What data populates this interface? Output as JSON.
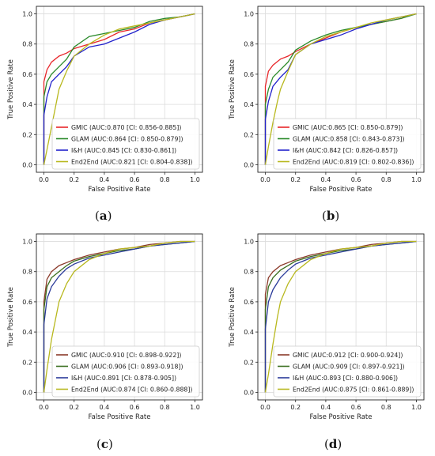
{
  "chart_data": [
    {
      "type": "line",
      "panel_label": "a",
      "xlabel": "False Positive Rate",
      "ylabel": "True Positive Rate",
      "xlim": [
        -0.05,
        1.05
      ],
      "ylim": [
        -0.05,
        1.05
      ],
      "xticks": [
        "0.0",
        "0.2",
        "0.4",
        "0.6",
        "0.8",
        "1.0"
      ],
      "yticks": [
        "0.0",
        "0.2",
        "0.4",
        "0.6",
        "0.8",
        "1.0"
      ],
      "grid": true,
      "legend_position": "lower-right",
      "series": [
        {
          "name": "GMIC (AUC:0.870 [CI: 0.856-0.885])",
          "color": "#e8262a",
          "x": [
            0,
            0,
            0.02,
            0.05,
            0.1,
            0.15,
            0.2,
            0.3,
            0.4,
            0.5,
            0.6,
            0.7,
            0.8,
            0.9,
            0.95,
            1
          ],
          "y": [
            0,
            0.55,
            0.63,
            0.68,
            0.72,
            0.74,
            0.77,
            0.8,
            0.83,
            0.88,
            0.9,
            0.94,
            0.96,
            0.98,
            0.99,
            1
          ]
        },
        {
          "name": "GLAM (AUC:0.864 [CI: 0.850-0.879])",
          "color": "#2a8a2a",
          "x": [
            0,
            0,
            0.02,
            0.05,
            0.1,
            0.15,
            0.2,
            0.3,
            0.4,
            0.5,
            0.6,
            0.7,
            0.8,
            0.9,
            0.95,
            1
          ],
          "y": [
            0,
            0.45,
            0.55,
            0.6,
            0.65,
            0.7,
            0.78,
            0.85,
            0.87,
            0.89,
            0.91,
            0.95,
            0.97,
            0.98,
            0.99,
            1
          ]
        },
        {
          "name": "I&H (AUC:0.845 [CI: 0.830-0.861])",
          "color": "#2222cc",
          "x": [
            0,
            0,
            0.02,
            0.05,
            0.1,
            0.15,
            0.2,
            0.3,
            0.4,
            0.5,
            0.6,
            0.7,
            0.8,
            0.9,
            0.95,
            1
          ],
          "y": [
            0,
            0.33,
            0.45,
            0.55,
            0.6,
            0.65,
            0.72,
            0.78,
            0.8,
            0.84,
            0.88,
            0.93,
            0.96,
            0.98,
            0.99,
            1
          ]
        },
        {
          "name": "End2End (AUC:0.821 [CI: 0.804-0.838])",
          "color": "#b8b81e",
          "x": [
            0,
            0.02,
            0.05,
            0.08,
            0.1,
            0.15,
            0.2,
            0.3,
            0.4,
            0.5,
            0.6,
            0.7,
            0.8,
            0.9,
            1
          ],
          "y": [
            0,
            0.1,
            0.25,
            0.4,
            0.5,
            0.62,
            0.72,
            0.8,
            0.86,
            0.9,
            0.92,
            0.94,
            0.96,
            0.98,
            1
          ]
        }
      ]
    },
    {
      "type": "line",
      "panel_label": "b",
      "xlabel": "False Positive Rate",
      "ylabel": "True Positive Rate",
      "xlim": [
        -0.05,
        1.05
      ],
      "ylim": [
        -0.05,
        1.05
      ],
      "xticks": [
        "0.0",
        "0.2",
        "0.4",
        "0.6",
        "0.8",
        "1.0"
      ],
      "yticks": [
        "0.0",
        "0.2",
        "0.4",
        "0.6",
        "0.8",
        "1.0"
      ],
      "grid": true,
      "legend_position": "lower-right",
      "series": [
        {
          "name": "GMIC (AUC:0.865 [CI: 0.850-0.879])",
          "color": "#e8262a",
          "x": [
            0,
            0,
            0.02,
            0.05,
            0.1,
            0.15,
            0.2,
            0.3,
            0.4,
            0.5,
            0.6,
            0.7,
            0.8,
            0.9,
            0.95,
            1
          ],
          "y": [
            0,
            0.52,
            0.62,
            0.66,
            0.7,
            0.72,
            0.75,
            0.8,
            0.84,
            0.88,
            0.91,
            0.93,
            0.95,
            0.97,
            0.99,
            1
          ]
        },
        {
          "name": "GLAM (AUC:0.858 [CI: 0.843-0.873])",
          "color": "#2a8a2a",
          "x": [
            0,
            0,
            0.02,
            0.05,
            0.1,
            0.15,
            0.2,
            0.3,
            0.4,
            0.5,
            0.6,
            0.7,
            0.8,
            0.9,
            1
          ],
          "y": [
            0,
            0.4,
            0.5,
            0.58,
            0.63,
            0.68,
            0.76,
            0.82,
            0.86,
            0.89,
            0.91,
            0.93,
            0.95,
            0.97,
            1
          ]
        },
        {
          "name": "I&H (AUC:0.842 [CI: 0.826-0.857])",
          "color": "#2222cc",
          "x": [
            0,
            0,
            0.02,
            0.05,
            0.1,
            0.15,
            0.2,
            0.3,
            0.4,
            0.5,
            0.6,
            0.7,
            0.8,
            0.9,
            1
          ],
          "y": [
            0,
            0.3,
            0.42,
            0.52,
            0.58,
            0.63,
            0.73,
            0.8,
            0.83,
            0.86,
            0.9,
            0.93,
            0.96,
            0.98,
            1
          ]
        },
        {
          "name": "End2End (AUC:0.819 [CI: 0.802-0.836])",
          "color": "#b8b81e",
          "x": [
            0,
            0.02,
            0.05,
            0.08,
            0.1,
            0.15,
            0.2,
            0.3,
            0.4,
            0.5,
            0.6,
            0.7,
            0.8,
            0.9,
            1
          ],
          "y": [
            0,
            0.12,
            0.28,
            0.42,
            0.5,
            0.62,
            0.73,
            0.8,
            0.85,
            0.88,
            0.91,
            0.94,
            0.96,
            0.98,
            1
          ]
        }
      ]
    },
    {
      "type": "line",
      "panel_label": "c",
      "xlabel": "False Positive Rate",
      "ylabel": "True Positive Rate",
      "xlim": [
        -0.05,
        1.05
      ],
      "ylim": [
        -0.05,
        1.05
      ],
      "xticks": [
        "0.0",
        "0.2",
        "0.4",
        "0.6",
        "0.8",
        "1.0"
      ],
      "yticks": [
        "0.0",
        "0.2",
        "0.4",
        "0.6",
        "0.8",
        "1.0"
      ],
      "grid": true,
      "legend_position": "lower-right",
      "series": [
        {
          "name": "GMIC (AUC:0.910 [CI: 0.898-0.922])",
          "color": "#8b3a2a",
          "x": [
            0,
            0,
            0.02,
            0.05,
            0.1,
            0.15,
            0.2,
            0.3,
            0.4,
            0.5,
            0.6,
            0.7,
            0.8,
            0.9,
            1
          ],
          "y": [
            0,
            0.6,
            0.75,
            0.8,
            0.84,
            0.86,
            0.88,
            0.91,
            0.93,
            0.95,
            0.96,
            0.98,
            0.99,
            1,
            1
          ]
        },
        {
          "name": "GLAM (AUC:0.906 [CI: 0.893-0.918])",
          "color": "#3a6e1e",
          "x": [
            0,
            0,
            0.02,
            0.05,
            0.1,
            0.15,
            0.2,
            0.3,
            0.4,
            0.5,
            0.6,
            0.7,
            0.8,
            0.9,
            1
          ],
          "y": [
            0,
            0.55,
            0.7,
            0.76,
            0.8,
            0.84,
            0.87,
            0.9,
            0.92,
            0.94,
            0.95,
            0.97,
            0.98,
            0.99,
            1
          ]
        },
        {
          "name": "I&H (AUC:0.891 [CI: 0.878-0.905])",
          "color": "#2a3a9a",
          "x": [
            0,
            0,
            0.02,
            0.05,
            0.1,
            0.15,
            0.2,
            0.3,
            0.4,
            0.5,
            0.6,
            0.7,
            0.8,
            0.9,
            1
          ],
          "y": [
            0,
            0.45,
            0.62,
            0.7,
            0.77,
            0.82,
            0.85,
            0.89,
            0.91,
            0.93,
            0.95,
            0.97,
            0.98,
            0.99,
            1
          ]
        },
        {
          "name": "End2End (AUC:0.874 [CI: 0.860-0.888])",
          "color": "#b8b81e",
          "x": [
            0,
            0.02,
            0.05,
            0.08,
            0.1,
            0.15,
            0.2,
            0.3,
            0.4,
            0.5,
            0.6,
            0.7,
            0.8,
            0.9,
            1
          ],
          "y": [
            0,
            0.15,
            0.35,
            0.5,
            0.6,
            0.72,
            0.8,
            0.88,
            0.92,
            0.95,
            0.96,
            0.97,
            0.99,
            1,
            1
          ]
        }
      ]
    },
    {
      "type": "line",
      "panel_label": "d",
      "xlabel": "False Positive Rate",
      "ylabel": "True Positive Rate",
      "xlim": [
        -0.05,
        1.05
      ],
      "ylim": [
        -0.05,
        1.05
      ],
      "xticks": [
        "0.0",
        "0.2",
        "0.4",
        "0.6",
        "0.8",
        "1.0"
      ],
      "yticks": [
        "0.0",
        "0.2",
        "0.4",
        "0.6",
        "0.8",
        "1.0"
      ],
      "grid": true,
      "legend_position": "lower-right",
      "series": [
        {
          "name": "GMIC (AUC:0.912 [CI: 0.900-0.924])",
          "color": "#8b3a2a",
          "x": [
            0,
            0,
            0.02,
            0.05,
            0.1,
            0.15,
            0.2,
            0.3,
            0.4,
            0.5,
            0.6,
            0.7,
            0.8,
            0.9,
            1
          ],
          "y": [
            0,
            0.65,
            0.76,
            0.8,
            0.84,
            0.86,
            0.88,
            0.91,
            0.93,
            0.95,
            0.96,
            0.98,
            0.99,
            1,
            1
          ]
        },
        {
          "name": "GLAM (AUC:0.909 [CI: 0.897-0.921])",
          "color": "#3a6e1e",
          "x": [
            0,
            0,
            0.02,
            0.05,
            0.1,
            0.15,
            0.2,
            0.3,
            0.4,
            0.5,
            0.6,
            0.7,
            0.8,
            0.9,
            1
          ],
          "y": [
            0,
            0.55,
            0.7,
            0.76,
            0.81,
            0.84,
            0.87,
            0.9,
            0.92,
            0.94,
            0.95,
            0.97,
            0.98,
            0.99,
            1
          ]
        },
        {
          "name": "I&H (AUC:0.893 [CI: 0.880-0.906])",
          "color": "#2a3a9a",
          "x": [
            0,
            0,
            0.02,
            0.05,
            0.1,
            0.15,
            0.2,
            0.3,
            0.4,
            0.5,
            0.6,
            0.7,
            0.8,
            0.9,
            1
          ],
          "y": [
            0,
            0.42,
            0.6,
            0.68,
            0.76,
            0.81,
            0.85,
            0.89,
            0.91,
            0.93,
            0.95,
            0.97,
            0.98,
            0.99,
            1
          ]
        },
        {
          "name": "End2End (AUC:0.875 [CI: 0.861-0.889])",
          "color": "#b8b81e",
          "x": [
            0,
            0.02,
            0.05,
            0.08,
            0.1,
            0.15,
            0.2,
            0.3,
            0.4,
            0.5,
            0.6,
            0.7,
            0.8,
            0.9,
            1
          ],
          "y": [
            0,
            0.12,
            0.32,
            0.5,
            0.6,
            0.72,
            0.8,
            0.88,
            0.92,
            0.95,
            0.96,
            0.97,
            0.99,
            1,
            1
          ]
        }
      ]
    }
  ],
  "captions": [
    "(a)",
    "(b)",
    "(c)",
    "(d)"
  ]
}
